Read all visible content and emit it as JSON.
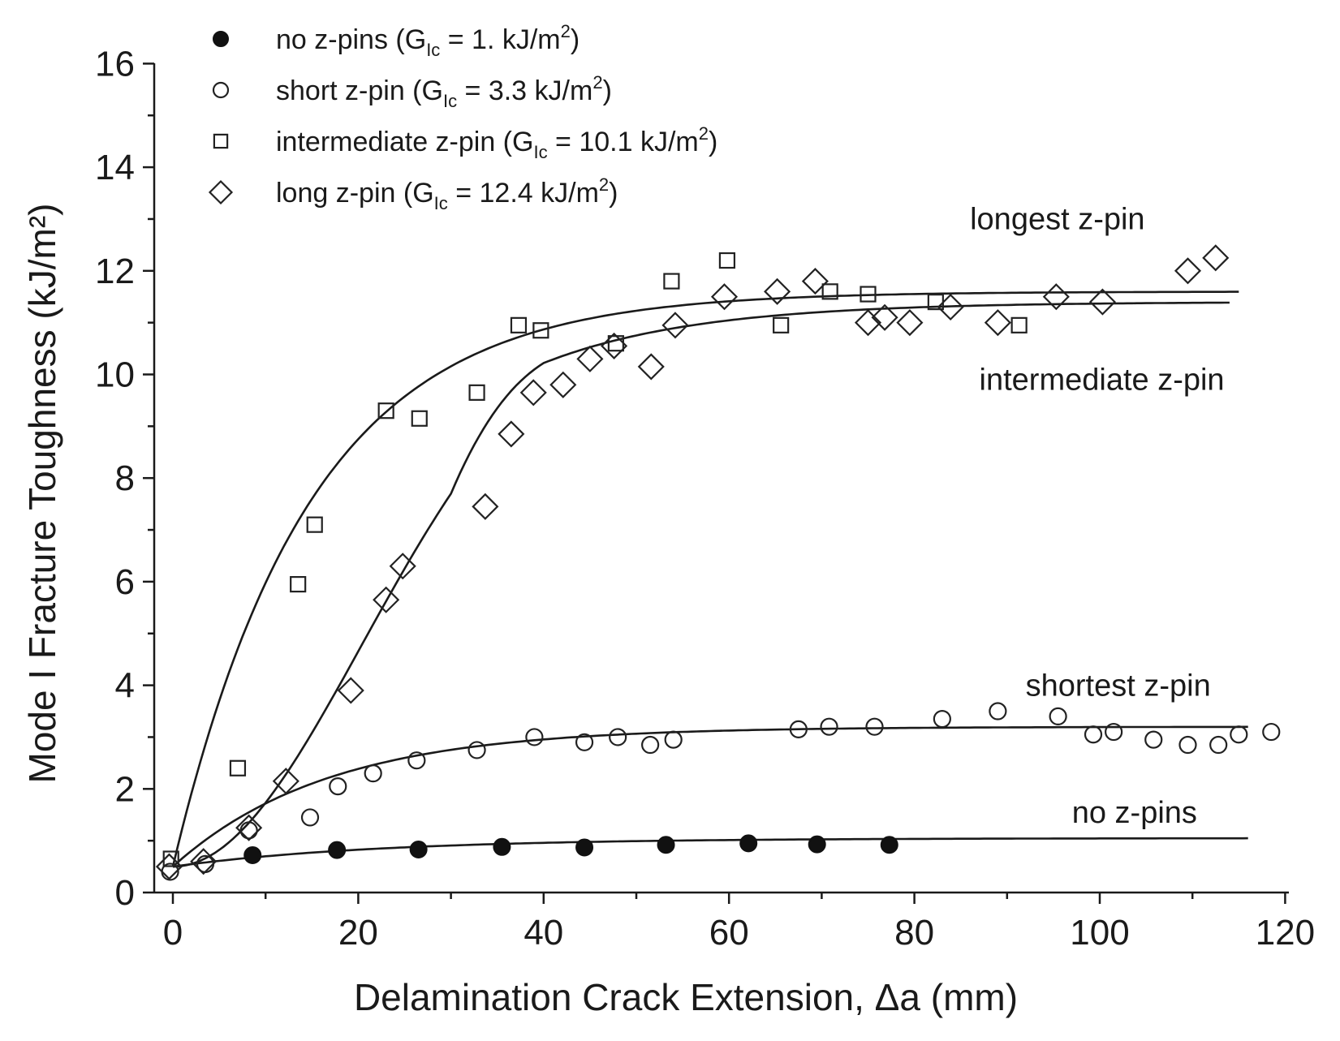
{
  "chart_data": {
    "type": "scatter",
    "xlabel": "Delamination Crack Extension, Δa (mm)",
    "ylabel": "Mode I Fracture Toughness (kJ/m²)",
    "xlim": [
      -2,
      120
    ],
    "ylim": [
      0,
      16
    ],
    "x_ticks": [
      "0",
      "20",
      "40",
      "60",
      "80",
      "100",
      "120"
    ],
    "y_ticks": [
      "0",
      "2",
      "4",
      "6",
      "8",
      "10",
      "12",
      "14",
      "16"
    ],
    "grid": false,
    "legend_position": "top-left",
    "legend": [
      {
        "marker": "filled-circle",
        "text": "no z-pins (G",
        "sub": "Ic",
        "text2": " = 1. kJ/m",
        "sup": "2",
        "text3": ")"
      },
      {
        "marker": "open-circle",
        "text": "short z-pin (G",
        "sub": "Ic",
        "text2": " = 3.3 kJ/m",
        "sup": "2",
        "text3": ")"
      },
      {
        "marker": "open-square",
        "text": "intermediate z-pin (G",
        "sub": "Ic",
        "text2": " = 10.1 kJ/m",
        "sup": "2",
        "text3": ")"
      },
      {
        "marker": "open-diamond",
        "text": "long z-pin (G",
        "sub": "Ic",
        "text2": " = 12.4 kJ/m",
        "sup": "2",
        "text3": ")"
      }
    ],
    "annotations": [
      {
        "text": "longest z-pin",
        "x": 86,
        "y": 12.8
      },
      {
        "text": "intermediate z-pin",
        "x": 87,
        "y": 9.7
      },
      {
        "text": "shortest z-pin",
        "x": 92,
        "y": 3.8
      },
      {
        "text": "no z-pins",
        "x": 97,
        "y": 1.35
      }
    ],
    "series": [
      {
        "marker": "filled-circle",
        "points": [
          [
            8.6,
            0.72
          ],
          [
            17.7,
            0.82
          ],
          [
            26.5,
            0.83
          ],
          [
            35.5,
            0.88
          ],
          [
            44.4,
            0.87
          ],
          [
            53.2,
            0.92
          ],
          [
            62.1,
            0.95
          ],
          [
            69.5,
            0.93
          ],
          [
            77.3,
            0.92
          ]
        ]
      },
      {
        "marker": "open-circle",
        "points": [
          [
            -0.3,
            0.4
          ],
          [
            3.5,
            0.55
          ],
          [
            8.2,
            1.2
          ],
          [
            14.8,
            1.45
          ],
          [
            17.8,
            2.05
          ],
          [
            21.6,
            2.3
          ],
          [
            26.3,
            2.55
          ],
          [
            32.8,
            2.75
          ],
          [
            39.0,
            3.0
          ],
          [
            44.4,
            2.9
          ],
          [
            48.0,
            3.0
          ],
          [
            51.5,
            2.85
          ],
          [
            54.0,
            2.95
          ],
          [
            67.5,
            3.15
          ],
          [
            70.8,
            3.2
          ],
          [
            75.7,
            3.2
          ],
          [
            83.0,
            3.35
          ],
          [
            89.0,
            3.5
          ],
          [
            95.5,
            3.4
          ],
          [
            99.3,
            3.05
          ],
          [
            101.5,
            3.1
          ],
          [
            105.8,
            2.95
          ],
          [
            109.5,
            2.85
          ],
          [
            112.8,
            2.85
          ],
          [
            115.0,
            3.05
          ],
          [
            118.5,
            3.1
          ]
        ]
      },
      {
        "marker": "open-square",
        "points": [
          [
            -0.2,
            0.65
          ],
          [
            7.0,
            2.4
          ],
          [
            13.5,
            5.95
          ],
          [
            15.3,
            7.1
          ],
          [
            23.0,
            9.3
          ],
          [
            26.6,
            9.15
          ],
          [
            32.8,
            9.65
          ],
          [
            37.3,
            10.95
          ],
          [
            39.7,
            10.85
          ],
          [
            47.8,
            10.6
          ],
          [
            53.8,
            11.8
          ],
          [
            59.8,
            12.2
          ],
          [
            65.6,
            10.95
          ],
          [
            70.9,
            11.6
          ],
          [
            75.0,
            11.55
          ],
          [
            82.3,
            11.4
          ],
          [
            91.3,
            10.95
          ]
        ]
      },
      {
        "marker": "open-diamond",
        "points": [
          [
            -0.4,
            0.5
          ],
          [
            3.3,
            0.6
          ],
          [
            8.2,
            1.25
          ],
          [
            12.2,
            2.15
          ],
          [
            19.2,
            3.9
          ],
          [
            23.0,
            5.65
          ],
          [
            24.8,
            6.3
          ],
          [
            33.7,
            7.45
          ],
          [
            36.5,
            8.85
          ],
          [
            38.9,
            9.65
          ],
          [
            42.1,
            9.8
          ],
          [
            45.0,
            10.3
          ],
          [
            47.6,
            10.55
          ],
          [
            51.6,
            10.15
          ],
          [
            54.2,
            10.95
          ],
          [
            59.5,
            11.5
          ],
          [
            65.2,
            11.6
          ],
          [
            69.3,
            11.8
          ],
          [
            75.0,
            11.0
          ],
          [
            76.8,
            11.1
          ],
          [
            79.5,
            11.0
          ],
          [
            83.9,
            11.3
          ],
          [
            89.0,
            11.0
          ],
          [
            95.3,
            11.5
          ],
          [
            100.3,
            11.4
          ],
          [
            109.5,
            12.0
          ],
          [
            112.5,
            12.25
          ]
        ]
      }
    ],
    "fit_curves": [
      {
        "label": "no z-pins",
        "x_end": 116,
        "y0": 0.5,
        "yinf": 1.05,
        "k": 0.045,
        "sigmoid": false
      },
      {
        "label": "shortest z-pin",
        "x_end": 116,
        "y0": 0.5,
        "yinf": 3.2,
        "k": 0.06,
        "sigmoid": false
      },
      {
        "label": "intermediate z-pin",
        "x_end": 115,
        "y0": 0.5,
        "yinf": 11.6,
        "k": 0.068,
        "sigmoid": false
      },
      {
        "label": "longest z-pin",
        "x_end": 114,
        "y0": 0.5,
        "yinf": 11.4,
        "k": 0.0012,
        "sigmoid": true
      }
    ]
  }
}
